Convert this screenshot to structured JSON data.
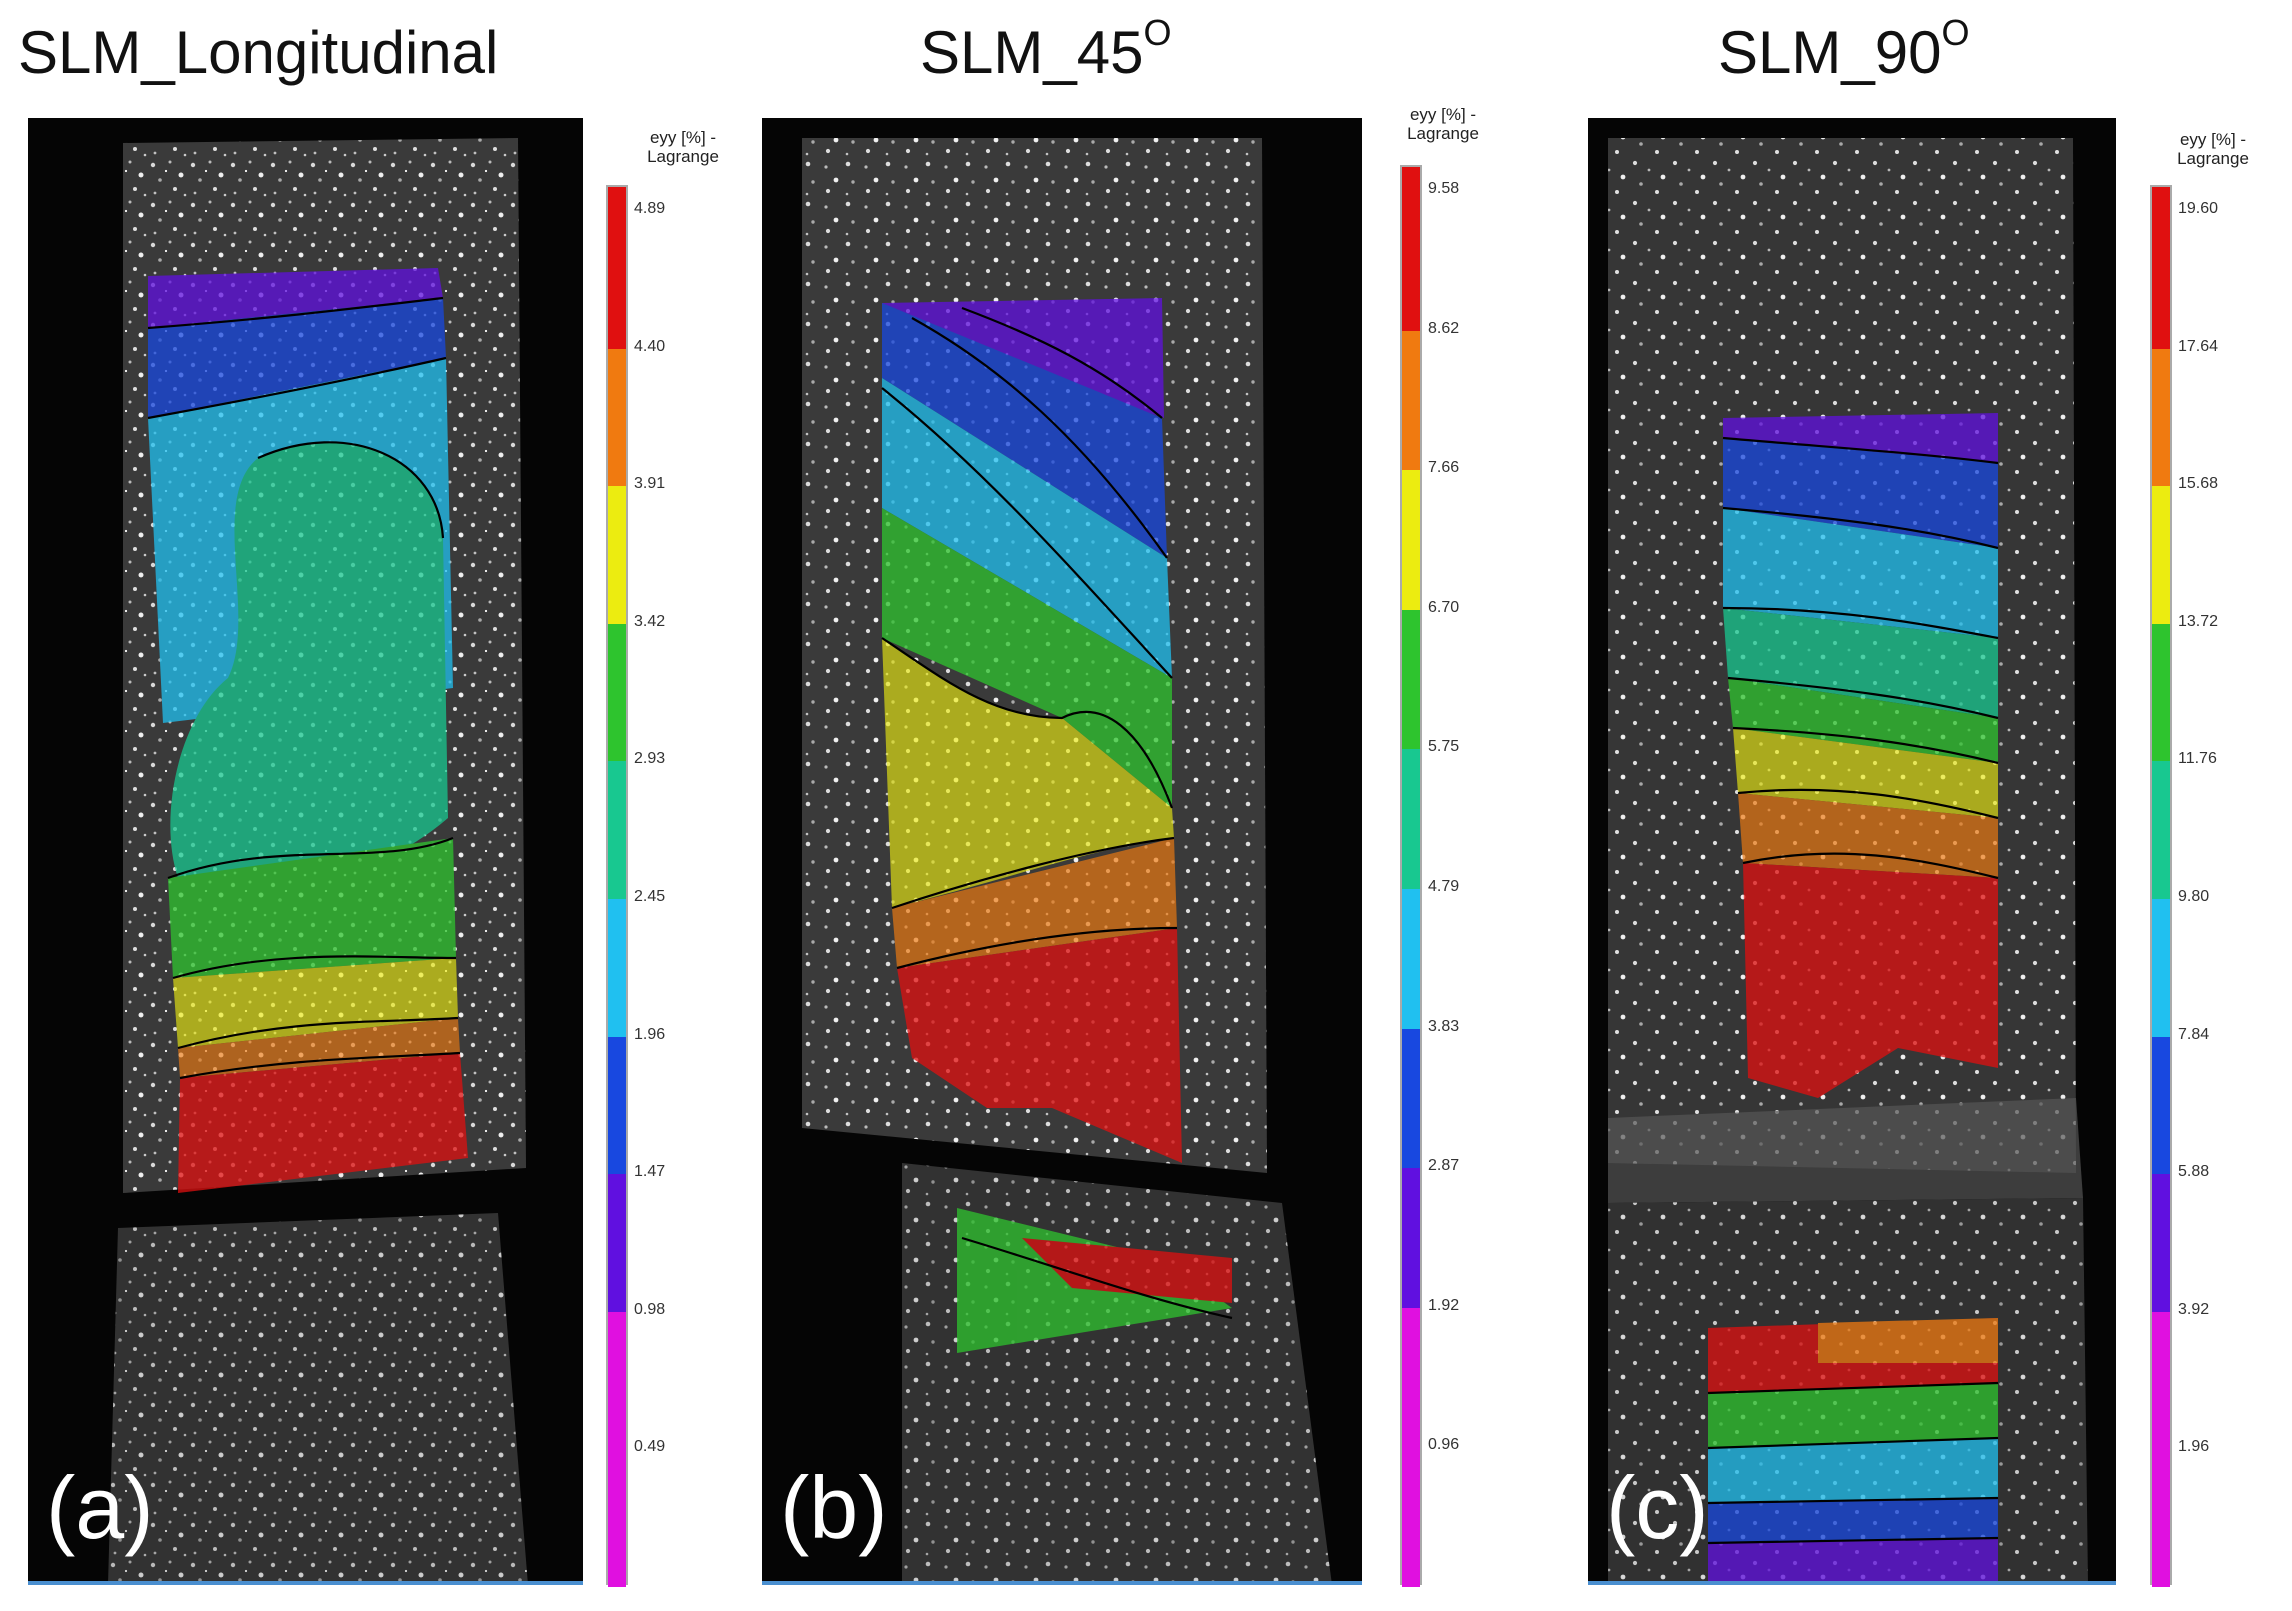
{
  "panels": [
    {
      "title": "SLM_Longitudinal",
      "title_sup": "",
      "label": "(a)",
      "colorbar_title_line1": "eyy [%] -",
      "colorbar_title_line2": "Lagrange",
      "ticks": [
        "4.89",
        "4.40",
        "3.91",
        "3.42",
        "2.93",
        "2.45",
        "1.96",
        "1.47",
        "0.98",
        "0.49"
      ]
    },
    {
      "title": "SLM_45",
      "title_sup": "O",
      "label": "(b)",
      "colorbar_title_line1": "eyy [%] -",
      "colorbar_title_line2": "Lagrange",
      "ticks": [
        "9.58",
        "8.62",
        "7.66",
        "6.70",
        "5.75",
        "4.79",
        "3.83",
        "2.87",
        "1.92",
        "0.96"
      ]
    },
    {
      "title": "SLM_90",
      "title_sup": "O",
      "label": "(c)",
      "colorbar_title_line1": "eyy [%] -",
      "colorbar_title_line2": "Lagrange",
      "ticks": [
        "19.60",
        "17.64",
        "15.68",
        "13.72",
        "11.76",
        "9.80",
        "7.84",
        "5.88",
        "3.92",
        "1.96"
      ]
    }
  ],
  "colormap": [
    "#e01010",
    "#f07a10",
    "#ecec10",
    "#2ec42e",
    "#18c890",
    "#20c0f0",
    "#1848e0",
    "#6010e0",
    "#e010e0"
  ],
  "colormap_top": "#e01010"
}
